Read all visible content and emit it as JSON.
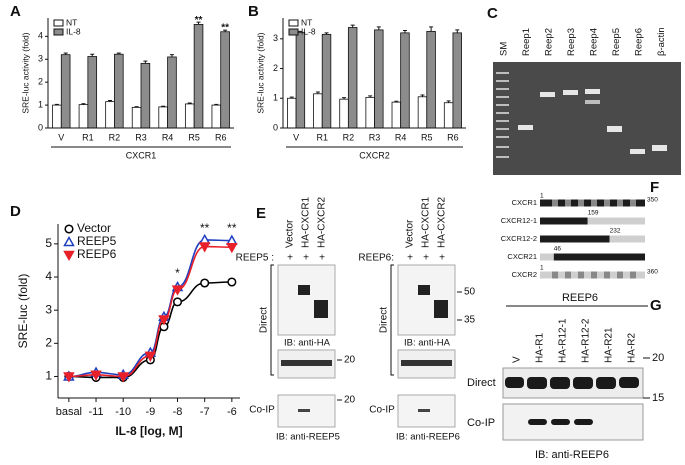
{
  "chart_data": [
    {
      "type": "bar",
      "panel": "A",
      "ylabel": "SRE-luc activity (fold)",
      "group_label": "CXCR1",
      "categories": [
        "V",
        "R1",
        "R2",
        "R3",
        "R4",
        "R5",
        "R6"
      ],
      "series": [
        {
          "name": "NT",
          "color": "#ffffff",
          "values": [
            1.0,
            1.02,
            1.15,
            0.9,
            0.92,
            1.05,
            1.0
          ],
          "errors": [
            0.03,
            0.04,
            0.05,
            0.03,
            0.03,
            0.04,
            0.03
          ]
        },
        {
          "name": "IL-8",
          "color": "#8c8c8c",
          "values": [
            3.2,
            3.12,
            3.22,
            2.82,
            3.1,
            4.52,
            4.2
          ],
          "errors": [
            0.07,
            0.1,
            0.05,
            0.1,
            0.1,
            0.1,
            0.07
          ]
        }
      ],
      "ylim": [
        0,
        4.8
      ],
      "yticks": [
        0,
        1,
        2,
        3,
        4
      ],
      "legend": "upper left",
      "annotations": [
        {
          "text": "**",
          "x": "R5",
          "y": 4.7
        },
        {
          "text": "**",
          "x": "R6",
          "y": 4.38
        }
      ]
    },
    {
      "type": "bar",
      "panel": "B",
      "ylabel": "SRE-luc activity (fold)",
      "group_label": "CXCR2",
      "categories": [
        "V",
        "R1",
        "R2",
        "R3",
        "R4",
        "R5",
        "R6"
      ],
      "series": [
        {
          "name": "NT",
          "color": "#ffffff",
          "values": [
            1.0,
            1.15,
            0.97,
            1.03,
            0.87,
            1.05,
            0.85
          ],
          "errors": [
            0.04,
            0.06,
            0.05,
            0.05,
            0.03,
            0.06,
            0.06
          ]
        },
        {
          "name": "IL-8",
          "color": "#8c8c8c",
          "values": [
            3.22,
            3.15,
            3.38,
            3.3,
            3.2,
            3.25,
            3.2
          ],
          "errors": [
            0.03,
            0.05,
            0.08,
            0.1,
            0.08,
            0.15,
            0.1
          ]
        }
      ],
      "ylim": [
        0,
        3.7
      ],
      "yticks": [
        0,
        1,
        2,
        3
      ],
      "legend": "upper left"
    },
    {
      "type": "line",
      "panel": "D",
      "ylabel": "SRE-luc (fold)",
      "xlabel": "IL-8 [log, M]",
      "x": [
        -12,
        -11,
        -10,
        -9,
        -8.5,
        -8,
        -7,
        -6
      ],
      "series": [
        {
          "name": "Vector",
          "color": "#000000",
          "marker": "circle",
          "filled": false,
          "values": [
            1.0,
            0.97,
            0.97,
            1.5,
            2.5,
            3.25,
            3.82,
            3.85
          ]
        },
        {
          "name": "REEP5",
          "color": "#1f3fbf",
          "marker": "triangle-up",
          "filled": false,
          "values": [
            1.0,
            1.12,
            1.05,
            1.72,
            2.8,
            3.7,
            5.12,
            5.1
          ]
        },
        {
          "name": "REEP6",
          "color": "#e8202a",
          "marker": "triangle-down",
          "filled": true,
          "values": [
            1.0,
            1.05,
            1.0,
            1.62,
            2.72,
            3.62,
            4.92,
            4.9
          ]
        }
      ],
      "xlim": [
        -12.4,
        -5.7
      ],
      "xticks": [
        {
          "value": -12,
          "label": "basal"
        },
        -11,
        -10,
        -9,
        -8,
        -7,
        -6
      ],
      "ylim": [
        0.35,
        5.6
      ],
      "yticks": [
        1,
        2,
        3,
        4,
        5
      ],
      "legend": "upper left",
      "annotations": [
        {
          "text": "*",
          "x": -8,
          "y": 4.1
        },
        {
          "text": "**",
          "x": -7,
          "y": 5.45
        },
        {
          "text": "**",
          "x": -6,
          "y": 5.45
        }
      ]
    }
  ],
  "gel": {
    "panel": "C",
    "lanes": [
      "SM",
      "Reep1",
      "Reep2",
      "Reep3",
      "Reep4",
      "Reep5",
      "Reep6",
      "β-actin"
    ]
  },
  "blots_e": {
    "panel": "E",
    "blots": [
      {
        "lanes": [
          "Vector",
          "HA-CXCR1",
          "HA-CXCR2"
        ],
        "treatment": "REEP5 :",
        "signs": [
          "+",
          "+",
          "+"
        ],
        "direct": "Direct",
        "ib_direct": "IB: anti-HA",
        "coip": "Co-IP",
        "ib_coip": "IB: anti-REEP5",
        "markers": [
          "20",
          "20"
        ]
      },
      {
        "lanes": [
          "Vector",
          "HA-CXCR1",
          "HA-CXCR2"
        ],
        "treatment": "REEP6:",
        "signs": [
          "+",
          "+",
          "+"
        ],
        "direct": "Direct",
        "ib_direct": "IB: anti-HA",
        "coip": "Co-IP",
        "ib_coip": "IB: anti-REEP6",
        "markers": [
          "50",
          "35"
        ]
      }
    ]
  },
  "constructs": {
    "panel": "F",
    "rows": [
      {
        "name": "CXCR1",
        "start": 1,
        "end": 350,
        "colors": [
          "#1c1c1c"
        ]
      },
      {
        "name": "CXCR12-1",
        "junction": 159,
        "colors": [
          "#1c1c1c",
          "#cfcfcf"
        ]
      },
      {
        "name": "CXCR12-2",
        "junction": 232,
        "colors": [
          "#1c1c1c",
          "#cfcfcf"
        ]
      },
      {
        "name": "CXCR21",
        "junction": 46,
        "colors": [
          "#cfcfcf",
          "#1c1c1c"
        ]
      },
      {
        "name": "CXCR2",
        "start": 1,
        "end": 360,
        "colors": [
          "#cfcfcf"
        ]
      }
    ]
  },
  "blot_g": {
    "panel": "G",
    "treatment": "REEP6",
    "lanes": [
      "V",
      "HA-R1",
      "HA-R12-1",
      "HA-R12-2",
      "HA-R21",
      "HA-R2"
    ],
    "markers": [
      "20",
      "15"
    ],
    "direct": "Direct",
    "coip": "Co-IP",
    "ib": "IB: anti-REEP6"
  }
}
